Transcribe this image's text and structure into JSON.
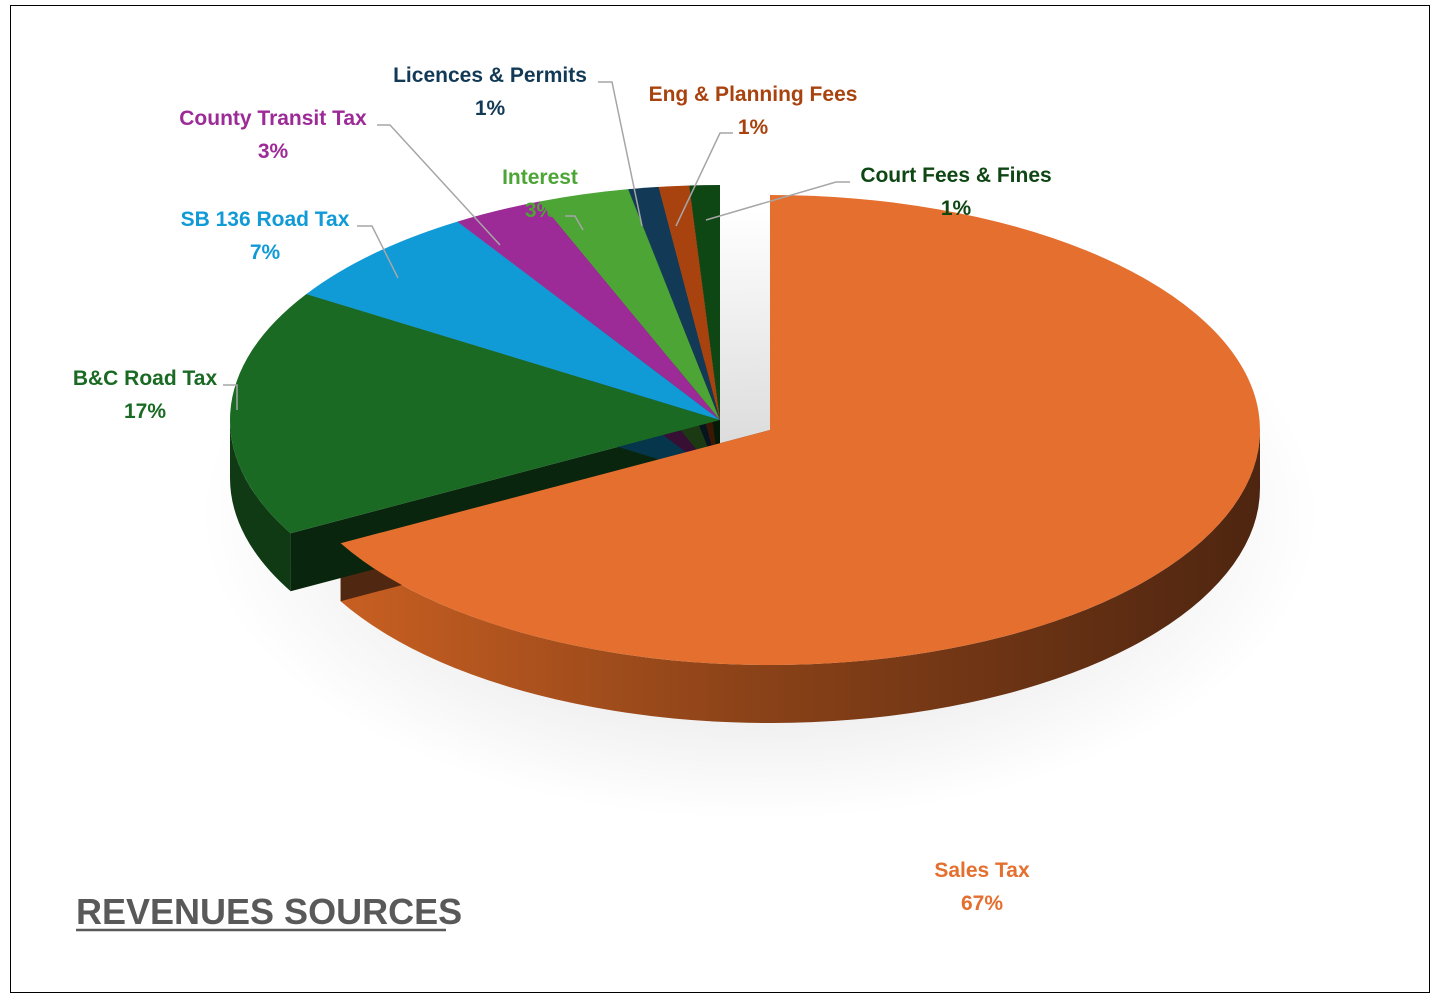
{
  "chart_data": {
    "type": "pie",
    "title": "REVENUES SOURCES",
    "slices": [
      {
        "label": "Sales Tax",
        "value": 67,
        "pct_label": "67%",
        "color": "#E46F2E",
        "label_color": "#E46F2E"
      },
      {
        "label": "B&C Road Tax",
        "value": 17,
        "pct_label": "17%",
        "color": "#1B6A24",
        "label_color": "#1B6A24"
      },
      {
        "label": "SB 136 Road Tax",
        "value": 7,
        "pct_label": "7%",
        "color": "#119BD6",
        "label_color": "#119BD6"
      },
      {
        "label": "County Transit Tax",
        "value": 3,
        "pct_label": "3%",
        "color": "#9C2A97",
        "label_color": "#9C2A97"
      },
      {
        "label": "Interest",
        "value": 3,
        "pct_label": "3%",
        "color": "#4CA535",
        "label_color": "#4CA535"
      },
      {
        "label": "Licences & Permits",
        "value": 1,
        "pct_label": "1%",
        "color": "#123A56",
        "label_color": "#123A56"
      },
      {
        "label": "Eng & Planning Fees",
        "value": 1,
        "pct_label": "1%",
        "color": "#A8430F",
        "label_color": "#A8430F"
      },
      {
        "label": "Court Fees & Fines",
        "value": 1,
        "pct_label": "1%",
        "color": "#0F4714",
        "label_color": "#0F4714"
      }
    ]
  }
}
